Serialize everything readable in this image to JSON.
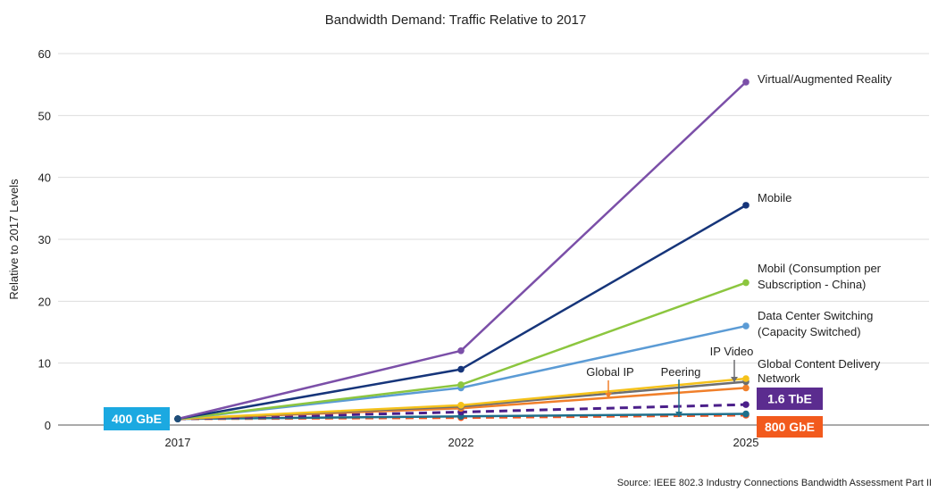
{
  "chart_data": {
    "type": "line",
    "title": "Bandwidth Demand: Traffic Relative to 2017",
    "ylabel": "Relative to 2017 Levels",
    "xlabel": "",
    "categories": [
      "2017",
      "2022",
      "2025"
    ],
    "ylim": [
      0,
      60
    ],
    "yticks": [
      0,
      10,
      20,
      30,
      40,
      50,
      60
    ],
    "grid": "horizontal",
    "series": [
      {
        "name": "Virtual/Augmented Reality",
        "values": [
          1,
          12,
          55.4
        ],
        "color": "#7b4fa8",
        "dashed": false
      },
      {
        "name": "Mobile",
        "values": [
          1,
          9,
          35.5
        ],
        "color": "#16357a",
        "dashed": false
      },
      {
        "name": "Mobil (Consumption per Subscription - China)",
        "values": [
          1,
          6.5,
          23
        ],
        "color": "#8cc63f",
        "dashed": false
      },
      {
        "name": "Data Center Switching (Capacity Switched)",
        "values": [
          1,
          6,
          16
        ],
        "color": "#5b9bd5",
        "dashed": false
      },
      {
        "name": "Global Content Delivery Network",
        "values": [
          1,
          3.2,
          7.5
        ],
        "color": "#f5c21b",
        "dashed": false
      },
      {
        "name": "IP Video",
        "values": [
          1,
          3,
          7
        ],
        "color": "#6d6e71",
        "dashed": false
      },
      {
        "name": "Global IP",
        "values": [
          1,
          2.7,
          6
        ],
        "color": "#f07f2a",
        "dashed": false
      },
      {
        "name": "1.6 TbE",
        "values": [
          1,
          2.1,
          3.3
        ],
        "color": "#4b1f8a",
        "dashed": true
      },
      {
        "name": "Peering",
        "values": [
          1,
          1.4,
          1.8
        ],
        "color": "#1f6f8b",
        "dashed": false
      },
      {
        "name": "800 GbE",
        "values": [
          1,
          1.2,
          1.6
        ],
        "color": "#f0531f",
        "dashed": true
      }
    ],
    "annotations": {
      "global_ip": "Global IP",
      "peering": "Peering",
      "ip_video": "IP Video",
      "badge_400": "400 GbE",
      "badge_1600": "1.6 TbE",
      "badge_800": "800 GbE"
    },
    "badge_colors": {
      "badge_400": "#1ba9e1",
      "badge_1600": "#5b2c8f",
      "badge_800": "#f25a1d"
    },
    "source": "Source: IEEE 802.3 Industry Connections Bandwidth Assessment Part II"
  }
}
